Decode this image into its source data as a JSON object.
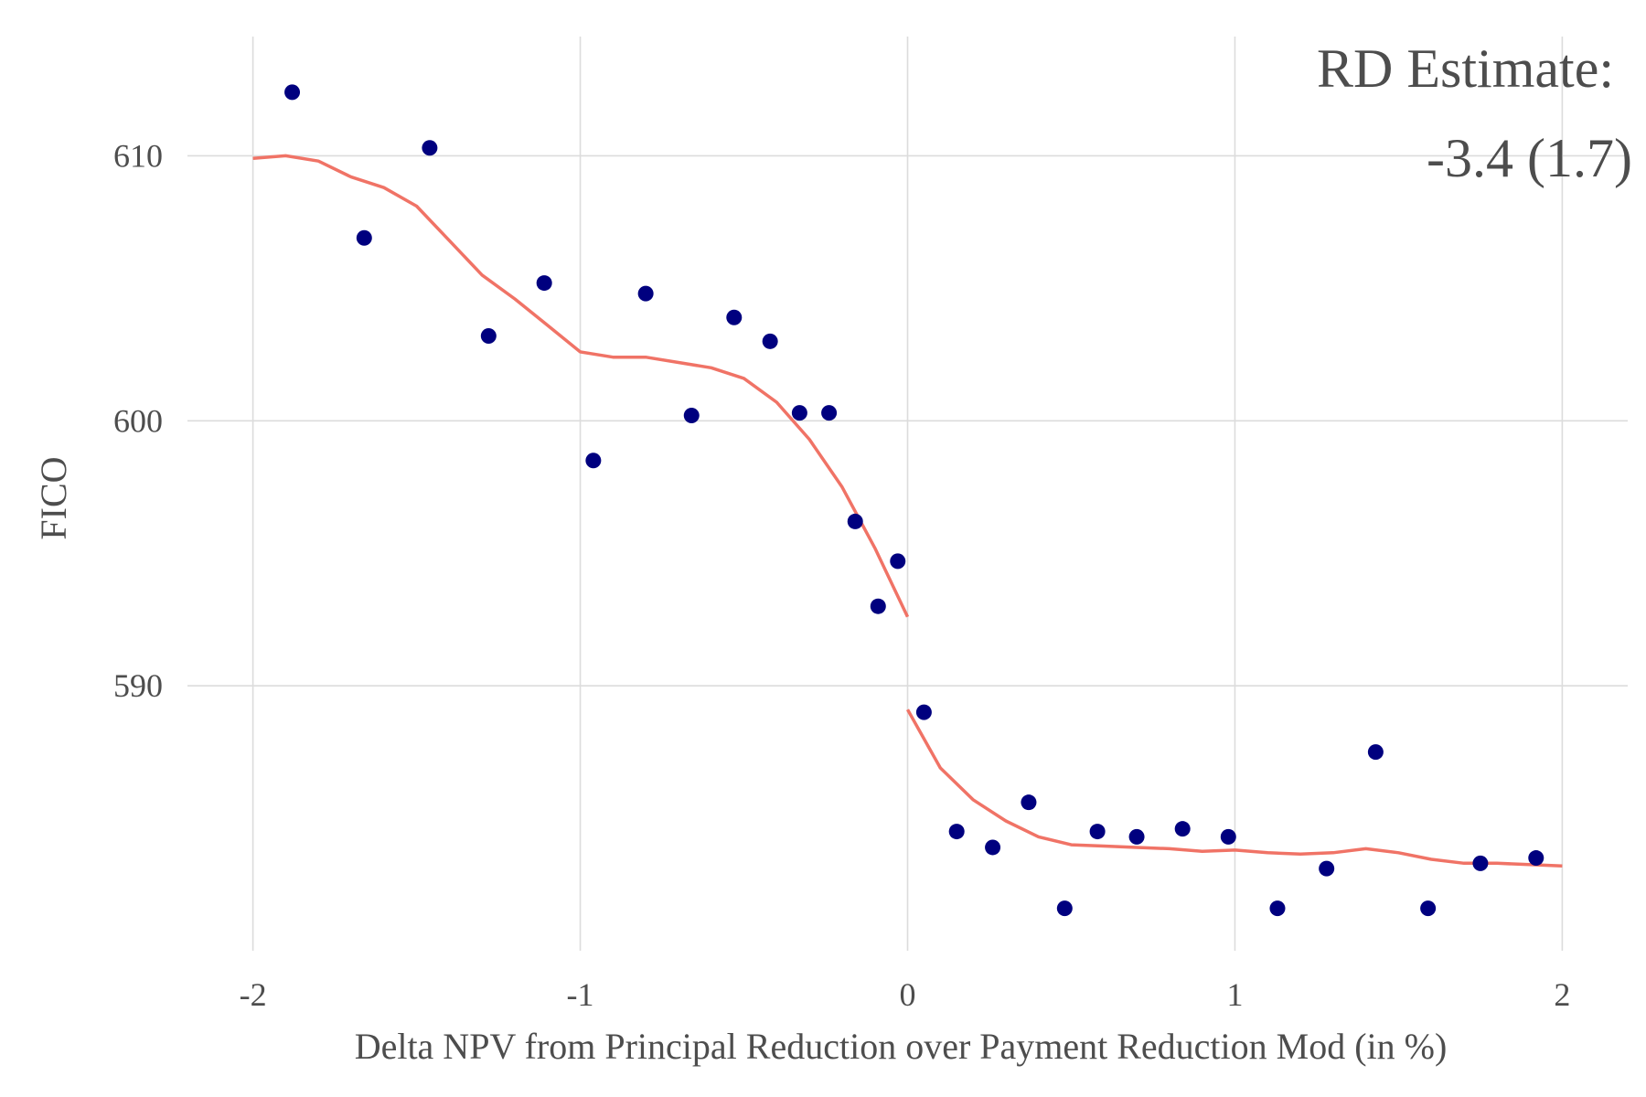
{
  "chart_data": {
    "type": "scatter",
    "xlabel": "Delta NPV from Principal Reduction over Payment Reduction Mod (in %)",
    "ylabel": "FICO",
    "xlim": [
      -2.2,
      2.2
    ],
    "ylim": [
      580,
      614.5
    ],
    "x_ticks": [
      -2,
      -1,
      0,
      1,
      2
    ],
    "x_tick_labels": [
      "-2",
      "-1",
      "0",
      "1",
      "2"
    ],
    "y_ticks": [
      590,
      600,
      610
    ],
    "y_tick_labels": [
      "590",
      "600",
      "610"
    ],
    "grid": true,
    "annotation": {
      "line1": "RD Estimate:",
      "line2": "-3.4 (1.7)",
      "position": "top-right"
    },
    "colors": {
      "points": "#00007f",
      "fit": "#f07366",
      "grid": "#dcdcdc",
      "text": "#4d4d4d"
    },
    "points": {
      "x": [
        -1.88,
        -1.66,
        -1.46,
        -1.28,
        -1.11,
        -0.96,
        -0.8,
        -0.66,
        -0.53,
        -0.42,
        -0.33,
        -0.24,
        -0.16,
        -0.09,
        -0.03,
        0.05,
        0.15,
        0.26,
        0.37,
        0.48,
        0.58,
        0.7,
        0.84,
        0.98,
        1.13,
        1.28,
        1.43,
        1.59,
        1.75,
        1.92
      ],
      "y": [
        612.4,
        606.9,
        610.3,
        603.2,
        605.2,
        598.5,
        604.8,
        600.2,
        603.9,
        603.0,
        600.3,
        600.3,
        596.2,
        593.0,
        594.7,
        589.0,
        584.5,
        583.9,
        585.6,
        581.6,
        584.5,
        584.3,
        584.6,
        584.3,
        581.6,
        583.1,
        587.5,
        581.6,
        583.3,
        583.5
      ]
    },
    "fit_left": {
      "x": [
        -2.0,
        -1.9,
        -1.8,
        -1.7,
        -1.6,
        -1.5,
        -1.4,
        -1.3,
        -1.2,
        -1.1,
        -1.0,
        -0.9,
        -0.8,
        -0.7,
        -0.6,
        -0.5,
        -0.4,
        -0.3,
        -0.2,
        -0.1,
        0.0
      ],
      "y": [
        609.9,
        610.0,
        609.8,
        609.2,
        608.8,
        608.1,
        606.8,
        605.5,
        604.6,
        603.6,
        602.6,
        602.4,
        602.4,
        602.2,
        602.0,
        601.6,
        600.7,
        599.3,
        597.5,
        595.2,
        592.6
      ]
    },
    "fit_right": {
      "x": [
        0.0,
        0.1,
        0.2,
        0.3,
        0.4,
        0.5,
        0.6,
        0.7,
        0.8,
        0.9,
        1.0,
        1.1,
        1.2,
        1.3,
        1.4,
        1.5,
        1.6,
        1.7,
        1.8,
        1.9,
        2.0
      ],
      "y": [
        589.1,
        586.9,
        585.7,
        584.9,
        584.3,
        584.0,
        583.95,
        583.9,
        583.85,
        583.75,
        583.8,
        583.7,
        583.65,
        583.7,
        583.85,
        583.7,
        583.45,
        583.3,
        583.3,
        583.25,
        583.2
      ]
    }
  }
}
